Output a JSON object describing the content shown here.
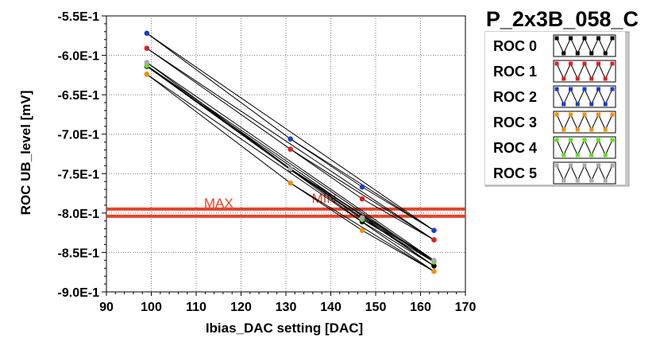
{
  "chart_data": {
    "type": "line",
    "title": "P_2x3B_058_C",
    "xlabel": "Ibias_DAC setting [DAC]",
    "ylabel": "ROC UB_level [mV]",
    "xlim": [
      90,
      170
    ],
    "ylim": [
      -0.9,
      -0.55
    ],
    "x_ticks": [
      "90",
      "100",
      "110",
      "120",
      "130",
      "140",
      "150",
      "160",
      "170"
    ],
    "y_ticks": [
      "-5.5E-1",
      "-6.0E-1",
      "-6.5E-1",
      "-7.0E-1",
      "-7.5E-1",
      "-8.0E-1",
      "-8.5E-1",
      "-9.0E-1"
    ],
    "grid": true,
    "legend_position": "right",
    "series": [
      {
        "name": "ROC 0",
        "color": "#000000",
        "x": [
          99,
          131,
          147,
          163
        ],
        "y": [
          -0.614,
          -0.745,
          -0.811,
          -0.867
        ]
      },
      {
        "name": "ROC 1",
        "color": "#e02020",
        "x": [
          99,
          131,
          147,
          163
        ],
        "y": [
          -0.591,
          -0.719,
          -0.782,
          -0.834
        ]
      },
      {
        "name": "ROC 2",
        "color": "#1a3ec8",
        "x": [
          99,
          131,
          147,
          163
        ],
        "y": [
          -0.572,
          -0.706,
          -0.767,
          -0.822
        ]
      },
      {
        "name": "ROC 3",
        "color": "#f0900a",
        "x": [
          99,
          131,
          147,
          163
        ],
        "y": [
          -0.624,
          -0.762,
          -0.822,
          -0.874
        ]
      },
      {
        "name": "ROC 4",
        "color": "#5ee020",
        "x": [
          99,
          131,
          147,
          163
        ],
        "y": [
          -0.613,
          -0.744,
          -0.808,
          -0.862
        ]
      },
      {
        "name": "ROC 5",
        "color": "#aaaaaa",
        "x": [
          99,
          131,
          147,
          163
        ],
        "y": [
          -0.609,
          -0.744,
          -0.806,
          -0.86
        ]
      }
    ],
    "threshold_lines": [
      {
        "label": "MAX",
        "y": -0.795,
        "color": "#e8432a"
      },
      {
        "label": "MIN",
        "y": -0.804,
        "color": "#e8432a"
      }
    ]
  }
}
